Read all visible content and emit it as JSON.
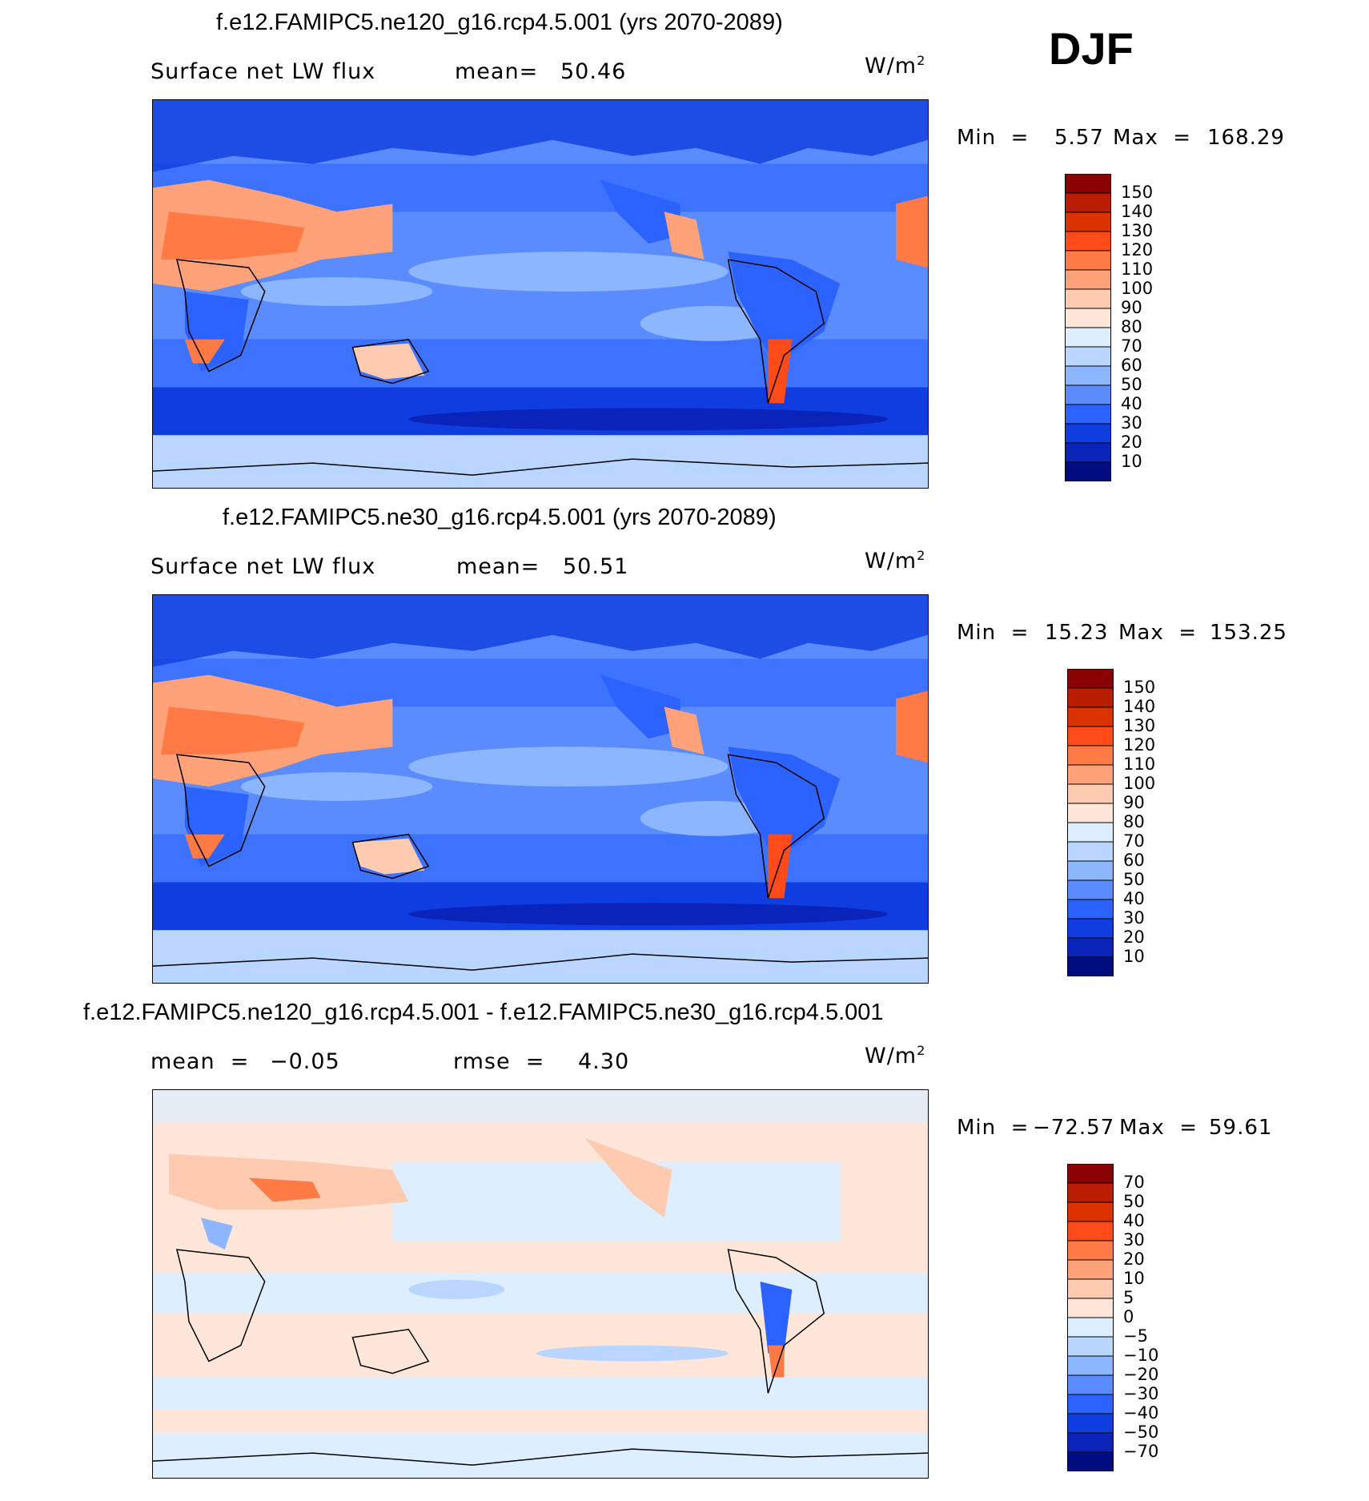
{
  "season": "DJF",
  "panels": [
    {
      "title": "f.e12.FAMIPC5.ne120_g16.rcp4.5.001 (yrs 2070-2089)",
      "variable": "Surface net LW flux",
      "stat1_label": "mean=",
      "stat1_value": "50.46",
      "units": "W/m",
      "units_exp": "2",
      "min_label": "Min  =",
      "min_value": "5.57",
      "max_label": "Max  =",
      "max_value": "168.29"
    },
    {
      "title": "f.e12.FAMIPC5.ne30_g16.rcp4.5.001 (yrs 2070-2089)",
      "variable": "Surface net LW flux",
      "stat1_label": "mean=",
      "stat1_value": "50.51",
      "units": "W/m",
      "units_exp": "2",
      "min_label": "Min  =",
      "min_value": "15.23",
      "max_label": "Max  =",
      "max_value": "153.25"
    },
    {
      "title": "f.e12.FAMIPC5.ne120_g16.rcp4.5.001 - f.e12.FAMIPC5.ne30_g16.rcp4.5.001",
      "stat0_label": "mean  =",
      "stat0_value": "−0.05",
      "stat1_label": "rmse  =",
      "stat1_value": "4.30",
      "units": "W/m",
      "units_exp": "2",
      "min_label": "Min  =",
      "min_value": "−72.57",
      "max_label": "Max  =",
      "max_value": "59.61"
    }
  ],
  "chart_data": [
    {
      "type": "heatmap",
      "title": "f.e12.FAMIPC5.ne120_g16.rcp4.5.001 (yrs 2070-2089)",
      "variable": "Surface net LW flux",
      "mean": 50.46,
      "min": 5.57,
      "max": 168.29,
      "colorbar_levels": [
        "150",
        "140",
        "130",
        "120",
        "110",
        "100",
        "90",
        "80",
        "70",
        "60",
        "50",
        "40",
        "30",
        "20",
        "10"
      ],
      "colorbar_colors": [
        "#8b0000",
        "#b81d00",
        "#db3200",
        "#ff4b1a",
        "#ff7a45",
        "#ffa27a",
        "#ffcbb0",
        "#ffe6d9",
        "#dceeff",
        "#b8d6ff",
        "#8cb6ff",
        "#5a8cff",
        "#2c63ff",
        "#0f3de0",
        "#0a23b8",
        "#000d80"
      ]
    },
    {
      "type": "heatmap",
      "title": "f.e12.FAMIPC5.ne30_g16.rcp4.5.001 (yrs 2070-2089)",
      "variable": "Surface net LW flux",
      "mean": 50.51,
      "min": 15.23,
      "max": 153.25,
      "colorbar_levels": [
        "150",
        "140",
        "130",
        "120",
        "110",
        "100",
        "90",
        "80",
        "70",
        "60",
        "50",
        "40",
        "30",
        "20",
        "10"
      ],
      "colorbar_colors": [
        "#8b0000",
        "#b81d00",
        "#db3200",
        "#ff4b1a",
        "#ff7a45",
        "#ffa27a",
        "#ffcbb0",
        "#ffe6d9",
        "#dceeff",
        "#b8d6ff",
        "#8cb6ff",
        "#5a8cff",
        "#2c63ff",
        "#0f3de0",
        "#0a23b8",
        "#000d80"
      ]
    },
    {
      "type": "heatmap",
      "title": "f.e12.FAMIPC5.ne120_g16.rcp4.5.001 - f.e12.FAMIPC5.ne30_g16.rcp4.5.001",
      "mean": -0.05,
      "rmse": 4.3,
      "min": -72.57,
      "max": 59.61,
      "colorbar_levels": [
        "70",
        "50",
        "40",
        "30",
        "20",
        "10",
        "5",
        "0",
        "−5",
        "−10",
        "−20",
        "−30",
        "−40",
        "−50",
        "−70"
      ],
      "colorbar_colors": [
        "#8b0000",
        "#b81d00",
        "#db3200",
        "#ff4b1a",
        "#ff7a45",
        "#ffa27a",
        "#ffcbb0",
        "#ffe6d9",
        "#dceeff",
        "#b8d6ff",
        "#8cb6ff",
        "#5a8cff",
        "#2c63ff",
        "#0f3de0",
        "#0a23b8",
        "#000d80"
      ]
    }
  ]
}
